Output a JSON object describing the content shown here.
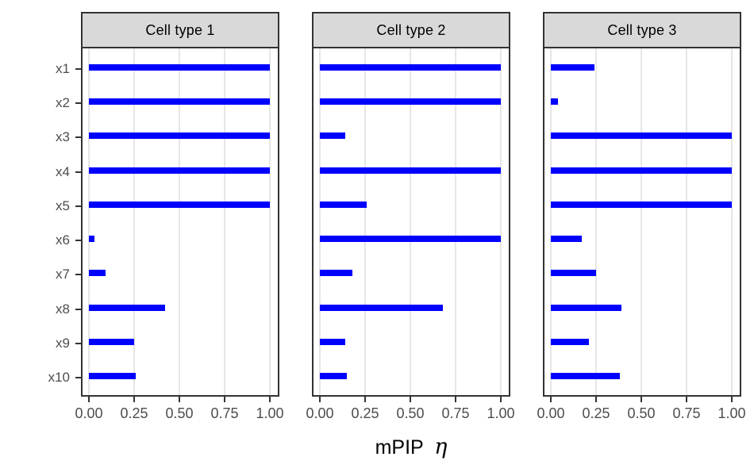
{
  "figure": {
    "x_axis_title_main": "mPIP",
    "x_axis_title_symbol": "η"
  },
  "chart_data": {
    "type": "bar",
    "orientation": "horizontal",
    "title": "",
    "xlabel": "mPIP η",
    "ylabel": "",
    "xlim": [
      0,
      1
    ],
    "x_ticks": [
      0,
      0.25,
      0.5,
      0.75,
      1
    ],
    "x_tick_labels": [
      "0.00",
      "0.25",
      "0.50",
      "0.75",
      "1.00"
    ],
    "categories": [
      "x1",
      "x2",
      "x3",
      "x4",
      "x5",
      "x6",
      "x7",
      "x8",
      "x9",
      "x10"
    ],
    "facets": [
      {
        "label": "Cell type 1",
        "values": [
          1.0,
          1.0,
          1.0,
          1.0,
          1.0,
          0.03,
          0.09,
          0.42,
          0.25,
          0.26
        ]
      },
      {
        "label": "Cell type 2",
        "values": [
          1.0,
          1.0,
          0.14,
          1.0,
          0.26,
          1.0,
          0.18,
          0.68,
          0.14,
          0.15
        ]
      },
      {
        "label": "Cell type 3",
        "values": [
          0.24,
          0.04,
          1.0,
          1.0,
          1.0,
          0.17,
          0.25,
          0.39,
          0.21,
          0.38
        ]
      }
    ],
    "legend": "none",
    "grid": "vertical major gridlines only, no horizontal gridlines",
    "bar_color": "#0000FF"
  },
  "colors": {
    "bar": "#0000FF",
    "strip_background": "#D9D9D9",
    "border": "#333333",
    "gridline": "#E6E6E6",
    "tick_label": "#4D4D4D",
    "axis_title": "#000000",
    "background": "#FFFFFF"
  }
}
